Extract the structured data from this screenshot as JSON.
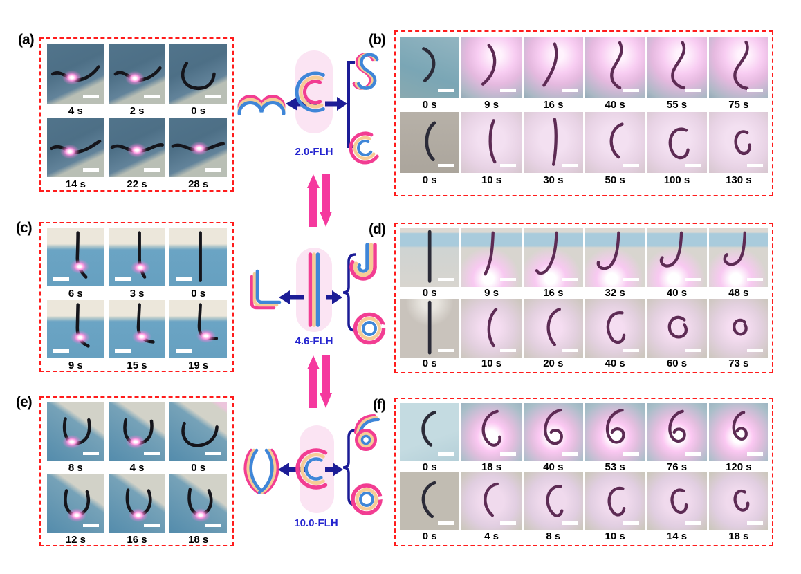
{
  "figure": {
    "colors": {
      "dashed_box": "#ff1c1c",
      "stripe_pink": "#f23d92",
      "stripe_orange": "#f6cc96",
      "stripe_blue": "#3f86d8",
      "navy_arrow": "#1c1c96",
      "equilibrium_arrow": "#f5399e",
      "flh_label_blue": "#2424cf",
      "capsule_fill": "#fbe4f3"
    },
    "schematics": [
      {
        "label": "2.0-FLH",
        "left_shape": "wave",
        "right_shapes": [
          "S",
          "C"
        ]
      },
      {
        "label": "4.6-FLH",
        "left_shape": "L",
        "right_shapes": [
          "J",
          "open-ring"
        ]
      },
      {
        "label": "10.0-FLH",
        "left_shape": "pointed-oval",
        "right_shapes": [
          "six-spiral",
          "open-ring"
        ]
      }
    ],
    "panels": [
      {
        "id": "a",
        "label": "(a)",
        "rows": [
          [
            {
              "t": "4 s",
              "bg": "ae",
              "shape": "a4",
              "spot": [
                43,
                56
              ]
            },
            {
              "t": "2 s",
              "bg": "ae",
              "shape": "a2",
              "spot": [
                46,
                57
              ]
            },
            {
              "t": "0 s",
              "bg": "ae",
              "shape": "a0"
            }
          ],
          [
            {
              "t": "14 s",
              "bg": "ae",
              "shape": "a14",
              "spot": [
                40,
                57
              ]
            },
            {
              "t": "22 s",
              "bg": "ae",
              "shape": "a22",
              "spot": [
                50,
                55
              ]
            },
            {
              "t": "28 s",
              "bg": "ae",
              "shape": "a28",
              "spot": [
                52,
                52
              ]
            }
          ]
        ]
      },
      {
        "id": "b",
        "label": "(b)",
        "rows": [
          [
            {
              "t": "0 s",
              "bg": "b1-0",
              "shape": "b0"
            },
            {
              "t": "9 s",
              "bg": "b1-glow",
              "shape": "b9"
            },
            {
              "t": "16 s",
              "bg": "b1-glow",
              "shape": "b16"
            },
            {
              "t": "40 s",
              "bg": "b1-glow",
              "shape": "b40"
            },
            {
              "t": "55 s",
              "bg": "b1-glow",
              "shape": "b55"
            },
            {
              "t": "75 s",
              "bg": "b1-glow",
              "shape": "b75"
            }
          ],
          [
            {
              "t": "0 s",
              "bg": "b2-0",
              "shape": "b2_0"
            },
            {
              "t": "10 s",
              "bg": "b2-glow",
              "shape": "b2_10"
            },
            {
              "t": "30 s",
              "bg": "b2-glow",
              "shape": "b2_30"
            },
            {
              "t": "50 s",
              "bg": "b2-glow",
              "shape": "b2_50"
            },
            {
              "t": "100 s",
              "bg": "b2-glow",
              "shape": "b2_100"
            },
            {
              "t": "130 s",
              "bg": "b2-glow",
              "shape": "b2_130"
            }
          ]
        ]
      },
      {
        "id": "c",
        "label": "(c)",
        "rows": [
          [
            {
              "t": "6 s",
              "bg": "c",
              "shape": "c6",
              "spot": [
                57,
                66
              ]
            },
            {
              "t": "3 s",
              "bg": "c",
              "shape": "c3",
              "spot": [
                56,
                68
              ]
            },
            {
              "t": "0 s",
              "bg": "c",
              "shape": "c0"
            }
          ],
          [
            {
              "t": "9 s",
              "bg": "c",
              "shape": "c9",
              "spot": [
                58,
                64
              ]
            },
            {
              "t": "15 s",
              "bg": "c",
              "shape": "c15",
              "spot": [
                58,
                63
              ]
            },
            {
              "t": "19 s",
              "bg": "c",
              "shape": "c19",
              "spot": [
                64,
                62
              ]
            }
          ]
        ]
      },
      {
        "id": "d",
        "label": "(d)",
        "rows": [
          [
            {
              "t": "0 s",
              "bg": "d1-0",
              "shape": "d0"
            },
            {
              "t": "9 s",
              "bg": "d1-glow",
              "shape": "d9"
            },
            {
              "t": "16 s",
              "bg": "d1-glow",
              "shape": "d16"
            },
            {
              "t": "32 s",
              "bg": "d1-glow",
              "shape": "d32"
            },
            {
              "t": "40 s",
              "bg": "d1-glow",
              "shape": "d40"
            },
            {
              "t": "48 s",
              "bg": "d1-glow",
              "shape": "d48"
            }
          ],
          [
            {
              "t": "0 s",
              "bg": "d2-0",
              "shape": "d2_0"
            },
            {
              "t": "10 s",
              "bg": "d2-glow",
              "shape": "d2_10"
            },
            {
              "t": "20 s",
              "bg": "d2-glow",
              "shape": "d2_20"
            },
            {
              "t": "40 s",
              "bg": "d2-glow",
              "shape": "d2_40"
            },
            {
              "t": "60 s",
              "bg": "d2-glow",
              "shape": "d2_60"
            },
            {
              "t": "73 s",
              "bg": "d2-glow",
              "shape": "d2_73"
            }
          ]
        ]
      },
      {
        "id": "e",
        "label": "(e)",
        "rows": [
          [
            {
              "t": "8 s",
              "bg": "e",
              "shape": "e8",
              "spot": [
                44,
                68
              ]
            },
            {
              "t": "4 s",
              "bg": "e",
              "shape": "e4",
              "spot": [
                48,
                68
              ]
            },
            {
              "t": "0 s",
              "bg": "e0",
              "shape": "e0"
            }
          ],
          [
            {
              "t": "12 s",
              "bg": "e",
              "shape": "e12",
              "spot": [
                52,
                70
              ]
            },
            {
              "t": "16 s",
              "bg": "e",
              "shape": "e16",
              "spot": [
                52,
                70
              ]
            },
            {
              "t": "18 s",
              "bg": "e",
              "shape": "e18",
              "spot": [
                54,
                70
              ]
            }
          ]
        ]
      },
      {
        "id": "f",
        "label": "(f)",
        "rows": [
          [
            {
              "t": "0 s",
              "bg": "f1-0",
              "shape": "f0"
            },
            {
              "t": "18 s",
              "bg": "f1-glow",
              "shape": "f18"
            },
            {
              "t": "40 s",
              "bg": "f1-glow",
              "shape": "f40"
            },
            {
              "t": "53 s",
              "bg": "f1-glow",
              "shape": "f53"
            },
            {
              "t": "76 s",
              "bg": "f1-glow",
              "shape": "f76"
            },
            {
              "t": "120 s",
              "bg": "f1-glow",
              "shape": "f120"
            }
          ],
          [
            {
              "t": "0 s",
              "bg": "f2-0",
              "shape": "f2_0"
            },
            {
              "t": "4 s",
              "bg": "f2-glow",
              "shape": "f2_4"
            },
            {
              "t": "8 s",
              "bg": "f2-glow",
              "shape": "f2_8"
            },
            {
              "t": "10 s",
              "bg": "f2-glow",
              "shape": "f2_10"
            },
            {
              "t": "14 s",
              "bg": "f2-glow",
              "shape": "f2_14"
            },
            {
              "t": "18 s",
              "bg": "f2-glow",
              "shape": "f2_18"
            }
          ]
        ]
      }
    ]
  }
}
